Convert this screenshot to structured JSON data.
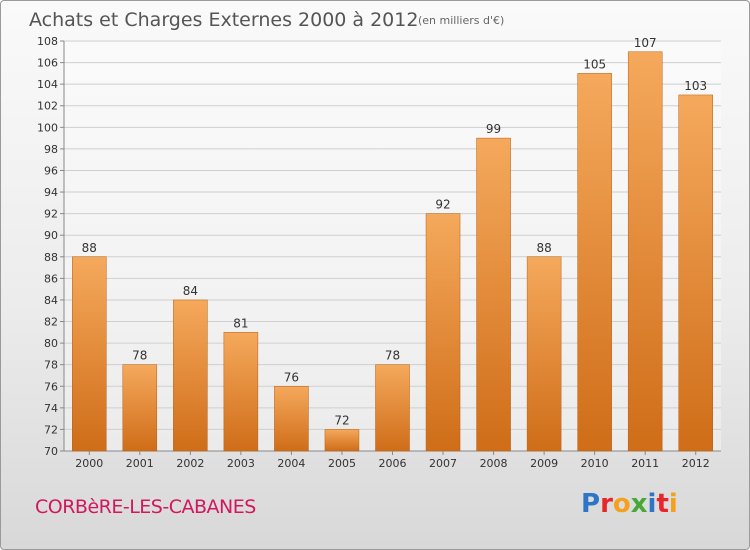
{
  "header": {
    "title": "Achats et Charges Externes 2000 à 2012",
    "subtitle": "(en milliers d'€)"
  },
  "footer": {
    "commune": "CORBèRE-LES-CABANES",
    "brand": "Proxiti",
    "brand_letters": [
      {
        "ch": "P",
        "color": "#2e75c7"
      },
      {
        "ch": "r",
        "color": "#e8262a"
      },
      {
        "ch": "o",
        "color": "#f4a11d"
      },
      {
        "ch": "x",
        "color": "#46a836"
      },
      {
        "ch": "i",
        "color": "#2e75c7"
      },
      {
        "ch": "t",
        "color": "#e8262a"
      },
      {
        "ch": "i",
        "color": "#f4a11d"
      }
    ]
  },
  "colors": {
    "bar_top": "#f5a95c",
    "bar_bottom": "#cf6d18",
    "bar_edge": "#b85e12",
    "commune": "#d2175e"
  },
  "chart_data": {
    "type": "bar",
    "title": "Achats et Charges Externes 2000 à 2012",
    "subtitle": "(en milliers d'€)",
    "xlabel": "",
    "ylabel": "",
    "categories": [
      "2000",
      "2001",
      "2002",
      "2003",
      "2004",
      "2005",
      "2006",
      "2007",
      "2008",
      "2009",
      "2010",
      "2011",
      "2012"
    ],
    "values": [
      88,
      78,
      84,
      81,
      76,
      72,
      78,
      92,
      99,
      88,
      105,
      107,
      103
    ],
    "ylim": [
      70,
      108
    ],
    "ytick_step": 2,
    "grid": true,
    "data_labels": true
  }
}
